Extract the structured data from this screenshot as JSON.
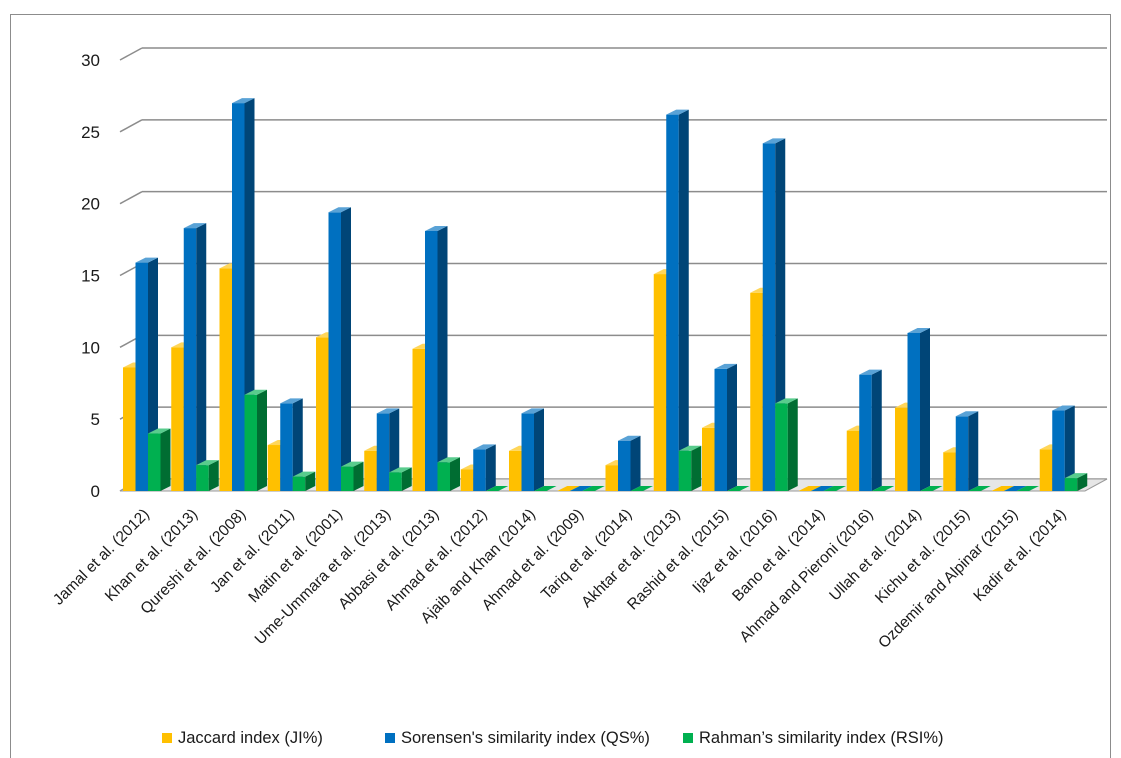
{
  "chart_data": {
    "type": "bar",
    "title": "",
    "xlabel": "",
    "ylabel": "",
    "ylim": [
      0,
      30
    ],
    "yticks": [
      0,
      5,
      10,
      15,
      20,
      25,
      30
    ],
    "grid": true,
    "legend_position": "bottom",
    "categories": [
      "Jamal et al. (2012)",
      "Khan et al. (2013)",
      "Qureshi et al. (2008)",
      "Jan et al. (2011)",
      "Matin et al. (2001)",
      "Ume-Ummara et al. (2013)",
      "Abbasi et al. (2013)",
      "Ahmad et al. (2012)",
      "Ajaib and Khan (2014)",
      "Ahmad et al. (2009)",
      "Tariq et al. (2014)",
      "Akhtar et al. (2013)",
      "Rashid et al. (2015)",
      "Ijaz et al. (2016)",
      "Bano et al. (2014)",
      "Ahmad and Pieroni (2016)",
      "Ullah et al. (2014)",
      "Kichu et al. (2015)",
      "Ozdemir and Alpinar (2015)",
      "Kadir et al. (2014)"
    ],
    "series": [
      {
        "name": "Jaccard index (JI%)",
        "color": "#FFC000",
        "values": [
          8.6,
          10.0,
          15.5,
          3.2,
          10.7,
          2.8,
          9.9,
          1.5,
          2.8,
          0,
          1.8,
          15.1,
          4.4,
          13.8,
          0,
          4.2,
          5.8,
          2.7,
          0,
          2.9
        ]
      },
      {
        "name": "Sorensen's similarity index (QS%)",
        "color": "#0070C0",
        "values": [
          15.9,
          18.3,
          27.0,
          6.1,
          19.4,
          5.4,
          18.1,
          2.9,
          5.4,
          0,
          3.5,
          26.2,
          8.5,
          24.2,
          0,
          8.1,
          11.0,
          5.2,
          0,
          5.6
        ]
      },
      {
        "name": "Rahman’s similarity index (RSI%)",
        "color": "#00B050",
        "values": [
          4.0,
          1.8,
          6.7,
          1.0,
          1.7,
          1.3,
          2.0,
          0,
          0,
          0,
          0,
          2.8,
          0,
          6.1,
          0,
          0,
          0,
          0,
          0,
          0.9
        ]
      }
    ]
  }
}
